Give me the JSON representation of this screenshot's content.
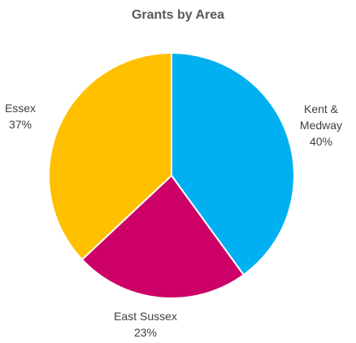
{
  "chart_data": {
    "type": "pie",
    "title": "Grants by Area",
    "slices": [
      {
        "name_lines": [
          "Kent &",
          "Medway"
        ],
        "label": "Kent & Medway",
        "value": 40,
        "value_label": "40%",
        "color": "#00B0F0"
      },
      {
        "name_lines": [
          "East Sussex"
        ],
        "label": "East Sussex",
        "value": 23,
        "value_label": "23%",
        "color": "#CC0066"
      },
      {
        "name_lines": [
          "Essex"
        ],
        "label": "Essex",
        "value": 37,
        "value_label": "37%",
        "color": "#FFC000"
      }
    ],
    "legend": "none",
    "data_labels": "outside"
  }
}
